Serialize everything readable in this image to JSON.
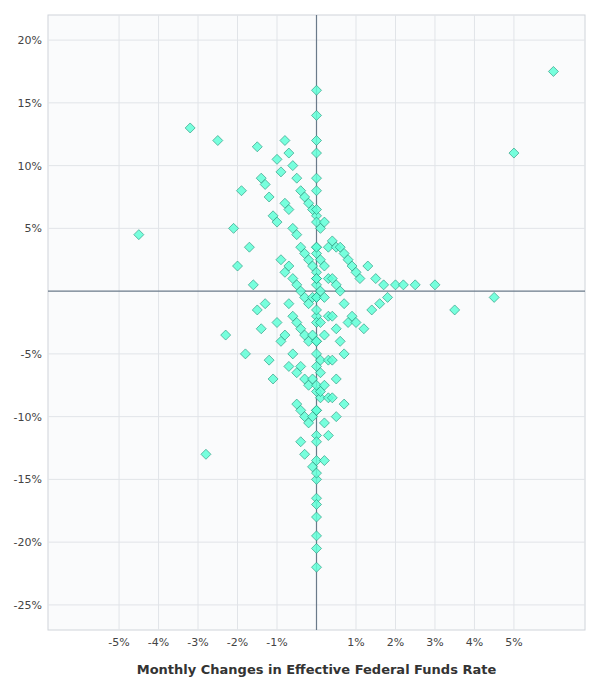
{
  "chart_data": {
    "type": "scatter",
    "xlabel": "Monthly Changes in Effective Federal Funds Rate",
    "color": "#5fffd7",
    "marker": "diamond",
    "grid": true,
    "xlim": [
      -6.8,
      6.8
    ],
    "ylim": [
      -27,
      22
    ],
    "xticks": [
      {
        "value": -5,
        "label": "-5%"
      },
      {
        "value": -4,
        "label": "-4%"
      },
      {
        "value": -3,
        "label": "-3%"
      },
      {
        "value": -2,
        "label": "-2%"
      },
      {
        "value": -1,
        "label": "-1%"
      },
      {
        "value": 1,
        "label": "1%"
      },
      {
        "value": 2,
        "label": "2%"
      },
      {
        "value": 3,
        "label": "3%"
      },
      {
        "value": 4,
        "label": "4%"
      },
      {
        "value": 5,
        "label": "5%"
      }
    ],
    "yticks": [
      {
        "value": -25,
        "label": "-25%"
      },
      {
        "value": -20,
        "label": "-20%"
      },
      {
        "value": -15,
        "label": "-15%"
      },
      {
        "value": -10,
        "label": "-10%"
      },
      {
        "value": -5,
        "label": "-5%"
      },
      {
        "value": 5,
        "label": "5%"
      },
      {
        "value": 10,
        "label": "10%"
      },
      {
        "value": 15,
        "label": "15%"
      },
      {
        "value": 20,
        "label": "20%"
      }
    ],
    "x": [
      -4.5,
      -3.2,
      -2.8,
      -2.5,
      -2.3,
      -2.1,
      -2.0,
      -1.9,
      -1.8,
      -1.7,
      -1.6,
      -1.5,
      -1.5,
      -1.4,
      -1.4,
      -1.3,
      -1.3,
      -1.2,
      -1.2,
      -1.1,
      -1.1,
      -1.0,
      -1.0,
      -1.0,
      -0.9,
      -0.9,
      -0.9,
      -0.8,
      -0.8,
      -0.8,
      -0.8,
      -0.7,
      -0.7,
      -0.7,
      -0.7,
      -0.7,
      -0.6,
      -0.6,
      -0.6,
      -0.6,
      -0.6,
      -0.5,
      -0.5,
      -0.5,
      -0.5,
      -0.5,
      -0.5,
      -0.4,
      -0.4,
      -0.4,
      -0.4,
      -0.4,
      -0.4,
      -0.4,
      -0.3,
      -0.3,
      -0.3,
      -0.3,
      -0.3,
      -0.3,
      -0.3,
      -0.2,
      -0.2,
      -0.2,
      -0.2,
      -0.2,
      -0.2,
      -0.1,
      -0.1,
      -0.1,
      -0.1,
      -0.1,
      -0.1,
      -0.1,
      0.0,
      0.0,
      0.0,
      0.0,
      0.0,
      0.0,
      0.0,
      0.0,
      0.0,
      0.0,
      0.0,
      0.0,
      0.0,
      0.0,
      0.0,
      0.0,
      0.0,
      0.0,
      0.0,
      0.0,
      0.0,
      0.0,
      0.0,
      0.0,
      0.0,
      0.0,
      0.0,
      0.0,
      0.0,
      0.0,
      0.0,
      0.0,
      0.0,
      0.0,
      0.0,
      0.0,
      0.0,
      0.0,
      0.0,
      0.0,
      0.1,
      0.1,
      0.1,
      0.1,
      0.1,
      0.1,
      0.1,
      0.1,
      0.2,
      0.2,
      0.2,
      0.2,
      0.2,
      0.2,
      0.2,
      0.3,
      0.3,
      0.3,
      0.3,
      0.3,
      0.3,
      0.4,
      0.4,
      0.4,
      0.4,
      0.4,
      0.5,
      0.5,
      0.5,
      0.5,
      0.5,
      0.6,
      0.6,
      0.6,
      0.7,
      0.7,
      0.7,
      0.7,
      0.8,
      0.8,
      0.9,
      0.9,
      1.0,
      1.0,
      1.1,
      1.2,
      1.3,
      1.4,
      1.5,
      1.6,
      1.7,
      1.8,
      2.0,
      2.2,
      2.5,
      3.0,
      3.5,
      4.5,
      5.0,
      6.0
    ],
    "values": [
      4.5,
      13.0,
      -13.0,
      12.0,
      -3.5,
      5.0,
      2.0,
      8.0,
      -5.0,
      3.5,
      0.5,
      11.5,
      -1.5,
      9.0,
      -3.0,
      8.5,
      -1.0,
      7.5,
      -5.5,
      6.0,
      -7.0,
      10.5,
      5.5,
      -2.5,
      9.5,
      2.5,
      -4.0,
      12.0,
      7.0,
      1.5,
      -3.5,
      11.0,
      6.5,
      2.0,
      -1.0,
      -6.0,
      10.0,
      5.0,
      1.0,
      -2.0,
      -5.0,
      9.0,
      4.5,
      0.5,
      -2.5,
      -6.5,
      -9.0,
      8.0,
      3.5,
      0.0,
      -3.0,
      -6.0,
      -9.5,
      -12.0,
      7.5,
      3.0,
      -0.5,
      -3.5,
      -7.0,
      -10.0,
      -13.0,
      7.0,
      2.5,
      -1.0,
      -4.0,
      -7.5,
      -10.5,
      6.5,
      2.0,
      -0.5,
      -3.5,
      -7.0,
      -10.0,
      -14.0,
      16.0,
      12.0,
      9.0,
      6.0,
      3.5,
      1.5,
      0.5,
      -0.5,
      -2.0,
      -4.0,
      -6.0,
      -8.0,
      -9.5,
      -11.5,
      -13.5,
      -15.0,
      -16.5,
      -18.0,
      -19.5,
      14.0,
      11.0,
      8.0,
      5.5,
      3.0,
      1.0,
      -0.5,
      -2.5,
      -5.0,
      -7.5,
      -9.5,
      -12.0,
      -14.5,
      -17.0,
      -20.5,
      -22.0,
      6.5,
      3.5,
      1.0,
      -1.5,
      -4.0,
      -6.5,
      -8.5,
      5.0,
      2.5,
      0.0,
      -2.5,
      -5.5,
      -8.0,
      -10.5,
      -13.5,
      5.5,
      2.0,
      -0.5,
      -3.5,
      -7.5,
      3.5,
      1.0,
      -2.0,
      -5.5,
      -8.5,
      -11.5,
      4.0,
      1.0,
      -2.0,
      -5.5,
      -8.5,
      3.5,
      0.5,
      -3.0,
      -7.0,
      -10.0,
      3.5,
      0.0,
      -4.0,
      3.0,
      -1.0,
      -5.0,
      -9.0,
      2.5,
      -2.5,
      2.0,
      -2.0,
      1.5,
      -2.5,
      1.0,
      -3.0,
      2.0,
      -1.5,
      1.0,
      -1.0,
      0.5,
      -0.5,
      0.5,
      0.5,
      0.5,
      0.5,
      -1.5,
      -0.5,
      11.0,
      17.5
    ]
  }
}
